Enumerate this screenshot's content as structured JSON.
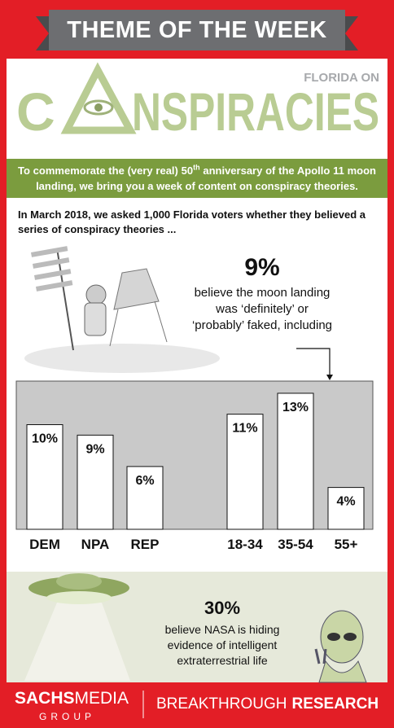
{
  "header": {
    "title": "THEME OF THE WEEK",
    "kicker": "FLORIDA ON",
    "logo_left": "C",
    "logo_right": "NSPIRACIES"
  },
  "intro": {
    "before": "To commemorate the (very real) 50",
    "sup": "th",
    "after": " anniversary of the Apollo 11 moon landing, we bring you a week of content on conspiracy theories."
  },
  "survey": "In March 2018, we asked 1,000 Florida voters whether they believed a series of conspiracy theories ...",
  "stat1": {
    "value": "9%",
    "text": "believe the moon landing was ‘definitely’ or ‘probably’ faked, including"
  },
  "chart_data": {
    "type": "bar",
    "categories": [
      "DEM",
      "NPA",
      "REP",
      "18-34",
      "35-54",
      "55+"
    ],
    "values": [
      10,
      9,
      6,
      11,
      13,
      4
    ],
    "value_labels": [
      "10%",
      "9%",
      "6%",
      "11%",
      "13%",
      "4%"
    ],
    "color": "#ffffff"
  },
  "stat2": {
    "value": "30%",
    "text": "believe NASA is hiding evidence of intelligent extraterrestrial life"
  },
  "footer": {
    "brand_a": "SACHS",
    "brand_b": "MEDIA",
    "group": "GROUP",
    "partner_a": "BREAKTHROUGH",
    "partner_b": "RESEARCH"
  }
}
